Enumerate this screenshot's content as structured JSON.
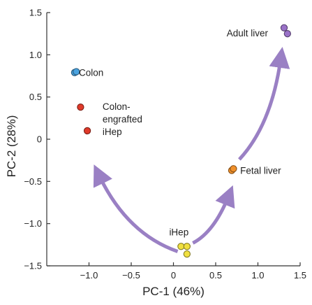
{
  "chart_data": {
    "type": "scatter",
    "xlabel": "PC-1 (46%)",
    "ylabel": "PC-2 (28%)",
    "xlim": [
      -1.5,
      1.5
    ],
    "ylim": [
      -1.5,
      1.5
    ],
    "xticks": [
      -1.0,
      -0.5,
      0,
      0.5,
      1.0,
      1.5
    ],
    "xtick_labels": [
      "−1.0",
      "−0.5",
      "0",
      "0.5",
      "1.0",
      "1.5"
    ],
    "yticks": [
      1.5,
      1.0,
      0.5,
      0,
      -0.5,
      -1.0,
      -1.5
    ],
    "ytick_labels": [
      "1.5",
      "1.0",
      "0.5",
      "0",
      "−0.5",
      "−1.0",
      "−1.5"
    ],
    "series": [
      {
        "name": "Colon",
        "color": "#4aa3e0",
        "points": [
          [
            -1.17,
            0.79
          ],
          [
            -1.15,
            0.8
          ]
        ]
      },
      {
        "name": "Colon-engrafted iHep",
        "color": "#e03a2a",
        "points": [
          [
            -1.1,
            0.38
          ],
          [
            -1.02,
            0.1
          ]
        ]
      },
      {
        "name": "iHep",
        "color": "#f0e040",
        "points": [
          [
            0.09,
            -1.27
          ],
          [
            0.16,
            -1.27
          ],
          [
            0.16,
            -1.36
          ]
        ]
      },
      {
        "name": "Fetal liver",
        "color": "#f0902a",
        "points": [
          [
            0.69,
            -0.37
          ],
          [
            0.71,
            -0.35
          ]
        ]
      },
      {
        "name": "Adult liver",
        "color": "#9a72c8",
        "points": [
          [
            1.31,
            1.32
          ],
          [
            1.35,
            1.25
          ]
        ]
      }
    ],
    "annotations": [
      {
        "text": "Colon",
        "x": -1.12,
        "y": 0.79
      },
      {
        "text": "Colon-",
        "x": -0.84,
        "y": 0.39
      },
      {
        "text": "engrafted",
        "x": -0.84,
        "y": 0.24
      },
      {
        "text": "iHep",
        "x": -0.84,
        "y": 0.09
      },
      {
        "text": "iHep",
        "x": -0.05,
        "y": -1.1
      },
      {
        "text": "Fetal liver",
        "x": 0.79,
        "y": -0.37
      },
      {
        "text": "Adult liver",
        "x": 0.63,
        "y": 1.26
      }
    ],
    "arrows": [
      {
        "from": "iHep",
        "to": "Colon-engrafted iHep",
        "color": "#9a80c4"
      },
      {
        "from": "iHep",
        "to": "Fetal liver",
        "color": "#9a80c4"
      },
      {
        "from": "Fetal liver",
        "to": "Adult liver",
        "color": "#9a80c4"
      }
    ],
    "grid": false,
    "legend": "none"
  }
}
